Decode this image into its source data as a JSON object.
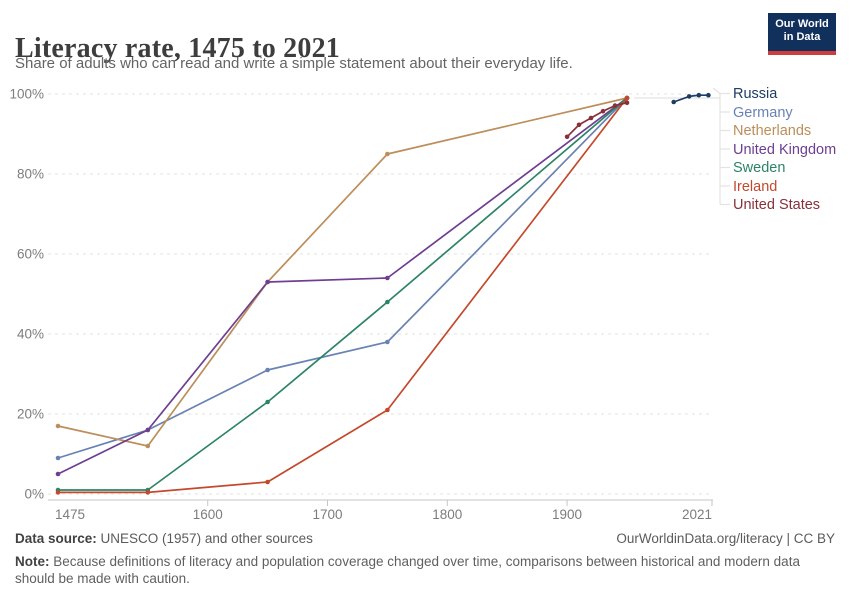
{
  "header": {
    "title": "Literacy rate, 1475 to 2021",
    "subtitle": "Share of adults who can read and write a simple statement about their everyday life.",
    "logo": {
      "line1": "Our World",
      "line2": "in Data",
      "bg_color": "#12305c",
      "accent_color": "#cf3c3c"
    }
  },
  "chart_data": {
    "type": "line",
    "title": "Literacy rate, 1475 to 2021",
    "xlabel": "",
    "ylabel": "",
    "xlim": [
      1475,
      2021
    ],
    "ylim": [
      0,
      100
    ],
    "x_ticks": [
      1475,
      1600,
      1700,
      1800,
      1900,
      2021
    ],
    "y_ticks": [
      0,
      20,
      40,
      60,
      80,
      100
    ],
    "y_tick_suffix": "%",
    "grid": "horizontal-dashed",
    "legend_position": "right",
    "series": [
      {
        "name": "Russia",
        "color": "#1d3d63",
        "points": [
          [
            1989,
            98.0
          ],
          [
            2002,
            99.4
          ],
          [
            2010,
            99.7
          ],
          [
            2018,
            99.7
          ]
        ]
      },
      {
        "name": "Germany",
        "color": "#6982b4",
        "points": [
          [
            1475,
            9
          ],
          [
            1550,
            16
          ],
          [
            1650,
            31
          ],
          [
            1750,
            38
          ],
          [
            1950,
            99
          ]
        ]
      },
      {
        "name": "Netherlands",
        "color": "#bc8e5a",
        "points": [
          [
            1475,
            17
          ],
          [
            1550,
            12
          ],
          [
            1650,
            53
          ],
          [
            1750,
            85
          ],
          [
            1950,
            99
          ]
        ]
      },
      {
        "name": "United Kingdom",
        "color": "#6d3e91",
        "points": [
          [
            1475,
            5
          ],
          [
            1550,
            16
          ],
          [
            1650,
            53
          ],
          [
            1750,
            54
          ],
          [
            1950,
            99
          ]
        ]
      },
      {
        "name": "Sweden",
        "color": "#2c8465",
        "points": [
          [
            1475,
            1
          ],
          [
            1550,
            1
          ],
          [
            1650,
            23
          ],
          [
            1750,
            48
          ],
          [
            1950,
            99
          ]
        ]
      },
      {
        "name": "Ireland",
        "color": "#c4492c",
        "points": [
          [
            1475,
            0.4
          ],
          [
            1550,
            0.4
          ],
          [
            1650,
            3
          ],
          [
            1750,
            21
          ],
          [
            1950,
            99
          ]
        ]
      },
      {
        "name": "United States",
        "color": "#883039",
        "points": [
          [
            1900,
            89.3
          ],
          [
            1910,
            92.3
          ],
          [
            1920,
            94.0
          ],
          [
            1930,
            95.7
          ],
          [
            1940,
            97.1
          ],
          [
            1950,
            97.8
          ]
        ]
      }
    ]
  },
  "footer": {
    "source_label": "Data source:",
    "source_text": " UNESCO (1957) and other sources",
    "link_text": "OurWorldinData.org/literacy | CC BY",
    "note_label": "Note:",
    "note_text": " Because definitions of literacy and population coverage changed over time, comparisons between historical and modern data should be made with caution."
  }
}
